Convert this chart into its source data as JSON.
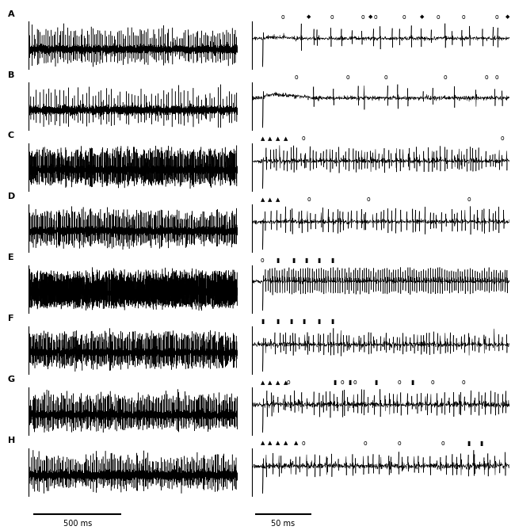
{
  "panels": [
    "A",
    "B",
    "C",
    "D",
    "E",
    "F",
    "G",
    "H"
  ],
  "fig_width": 6.5,
  "fig_height": 6.69,
  "bg_color": "#ffffff",
  "trace_color": "#000000",
  "left_scalebar_label": "500 ms",
  "right_scalebar_label": "50 ms",
  "panel_label_fontsize": 8,
  "scalebar_fontsize": 7,
  "n_rows": 8,
  "row_markers": {
    "A": {
      "circles": [
        0.12,
        0.31,
        0.43,
        0.48,
        0.59,
        0.72,
        0.82,
        0.95
      ],
      "diamonds": [
        0.22,
        0.46,
        0.66,
        0.99
      ],
      "triangles": [],
      "bars": []
    },
    "B": {
      "circles": [
        0.17,
        0.37,
        0.52,
        0.75,
        0.91,
        0.95
      ],
      "diamonds": [],
      "triangles": [],
      "bars": []
    },
    "C": {
      "circles": [
        0.2,
        0.97
      ],
      "diamonds": [],
      "triangles": [
        0.04,
        0.07,
        0.1,
        0.13
      ],
      "bars": []
    },
    "D": {
      "circles": [
        0.22,
        0.45,
        0.84
      ],
      "diamonds": [],
      "triangles": [
        0.04,
        0.07,
        0.1
      ],
      "bars": []
    },
    "E": {
      "circles": [
        0.04
      ],
      "diamonds": [],
      "triangles": [],
      "bars": [
        0.1,
        0.16,
        0.21,
        0.26,
        0.31
      ]
    },
    "F": {
      "circles": [],
      "diamonds": [],
      "triangles": [],
      "bars": [
        0.04,
        0.1,
        0.15,
        0.2,
        0.26,
        0.31
      ]
    },
    "G": {
      "circles": [
        0.14,
        0.35,
        0.4,
        0.57,
        0.7,
        0.82
      ],
      "diamonds": [],
      "triangles": [
        0.04,
        0.07,
        0.1,
        0.13
      ],
      "bars": [
        0.32,
        0.38,
        0.48,
        0.62
      ]
    },
    "H": {
      "circles": [
        0.2,
        0.44,
        0.57,
        0.74
      ],
      "diamonds": [],
      "triangles": [
        0.04,
        0.07,
        0.1,
        0.13,
        0.17
      ],
      "bars": [
        0.84,
        0.89
      ]
    }
  },
  "left_traces": {
    "A": {
      "spike_rate": 0.03,
      "spike_amp": 0.6,
      "base_amp": 0.055,
      "n_spikes_uniform": true
    },
    "B": {
      "spike_rate": 0.018,
      "spike_amp": 0.5,
      "base_amp": 0.045,
      "n_spikes_uniform": true
    },
    "C": {
      "spike_rate": 0.065,
      "spike_amp": 1.1,
      "base_amp": 0.09,
      "n_spikes_uniform": true
    },
    "D": {
      "spike_rate": 0.045,
      "spike_amp": 0.85,
      "base_amp": 0.075,
      "n_spikes_uniform": true
    },
    "E": {
      "spike_rate": 0.1,
      "spike_amp": 1.8,
      "base_amp": 0.12,
      "n_spikes_uniform": true
    },
    "F": {
      "spike_rate": 0.055,
      "spike_amp": 1.0,
      "base_amp": 0.085,
      "n_spikes_uniform": true
    },
    "G": {
      "spike_rate": 0.05,
      "spike_amp": 0.85,
      "base_amp": 0.08,
      "n_spikes_uniform": true
    },
    "H": {
      "spike_rate": 0.04,
      "spike_amp": 0.65,
      "base_amp": 0.07,
      "n_spikes_uniform": true
    }
  },
  "right_traces": {
    "A": {
      "spike_rate": 0.025,
      "spike_amp": 0.9,
      "base_amp": 0.06,
      "style": "bump_decay"
    },
    "B": {
      "spike_rate": 0.015,
      "spike_amp": 0.7,
      "base_amp": 0.05,
      "style": "bump_decay_slow"
    },
    "C": {
      "spike_rate": 0.08,
      "spike_amp": 1.3,
      "base_amp": 0.1,
      "style": "high_freq"
    },
    "D": {
      "spike_rate": 0.06,
      "spike_amp": 1.1,
      "base_amp": 0.08,
      "style": "medium_freq"
    },
    "E": {
      "spike_rate": 0.12,
      "spike_amp": 1.8,
      "base_amp": 0.1,
      "style": "very_high_freq"
    },
    "F": {
      "spike_rate": 0.07,
      "spike_amp": 1.1,
      "base_amp": 0.1,
      "style": "medium_freq2"
    },
    "G": {
      "spike_rate": 0.06,
      "spike_amp": 0.95,
      "base_amp": 0.09,
      "style": "medium_freq"
    },
    "H": {
      "spike_rate": 0.045,
      "spike_amp": 0.75,
      "base_amp": 0.08,
      "style": "medium_freq"
    }
  }
}
